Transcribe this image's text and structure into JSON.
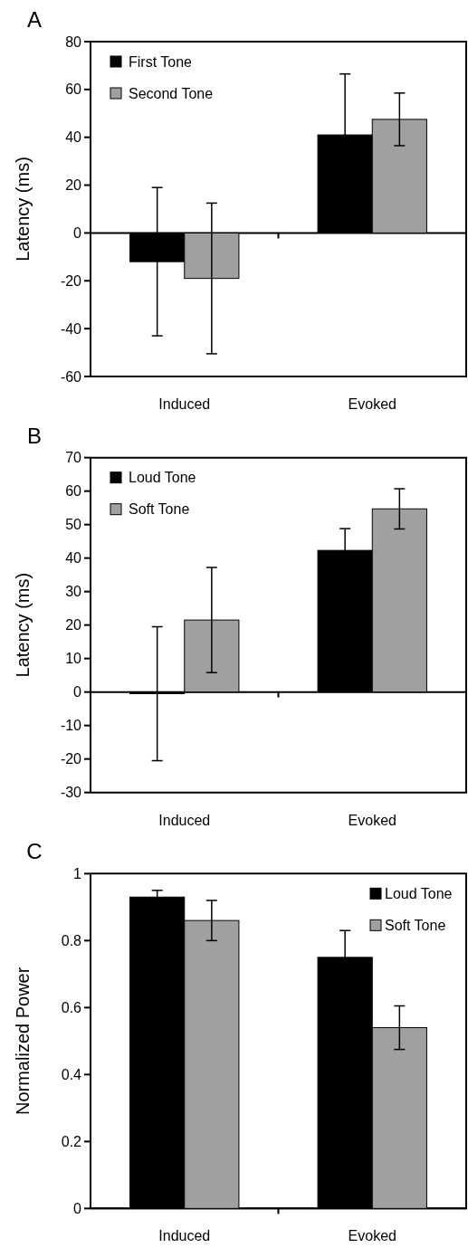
{
  "chart_data": [
    {
      "type": "bar",
      "title": "A",
      "ylabel": "Latency (ms)",
      "categories": [
        "Induced",
        "Evoked"
      ],
      "ylim": [
        -60,
        80
      ],
      "yticks": [
        -60,
        -40,
        -20,
        0,
        20,
        40,
        60,
        80
      ],
      "legend": "top left",
      "ref_lines": [
        {
          "axis": "y",
          "value": 0
        }
      ],
      "series": [
        {
          "name": "First Tone",
          "color": "#000000",
          "values": [
            -12,
            41
          ],
          "errors": [
            31,
            25.5
          ]
        },
        {
          "name": "Second Tone",
          "color": "#a0a0a0",
          "values": [
            -19,
            47.5
          ],
          "errors": [
            31.5,
            11
          ]
        }
      ]
    },
    {
      "type": "bar",
      "title": "B",
      "ylabel": "Latency (ms)",
      "categories": [
        "Induced",
        "Evoked"
      ],
      "ylim": [
        -30,
        70
      ],
      "yticks": [
        -30,
        -20,
        -10,
        0,
        10,
        20,
        30,
        40,
        50,
        60,
        70
      ],
      "legend": "top left",
      "ref_lines": [
        {
          "axis": "y",
          "value": 0
        }
      ],
      "series": [
        {
          "name": "Loud Tone",
          "color": "#000000",
          "values": [
            -0.5,
            42.3
          ],
          "errors": [
            20,
            6.5
          ]
        },
        {
          "name": "Soft Tone",
          "color": "#a0a0a0",
          "values": [
            21.5,
            54.7
          ],
          "errors": [
            15.7,
            6
          ]
        }
      ]
    },
    {
      "type": "bar",
      "title": "C",
      "ylabel": "Normalized Power",
      "categories": [
        "Induced",
        "Evoked"
      ],
      "ylim": [
        0,
        1
      ],
      "yticks": [
        0,
        0.2,
        0.4,
        0.6,
        0.8,
        1
      ],
      "legend": "top right",
      "series": [
        {
          "name": "Loud Tone",
          "color": "#000000",
          "values": [
            0.93,
            0.75
          ],
          "errors": [
            0.02,
            0.08
          ]
        },
        {
          "name": "Soft Tone",
          "color": "#a0a0a0",
          "values": [
            0.86,
            0.54
          ],
          "errors": [
            0.06,
            0.065
          ]
        }
      ]
    }
  ]
}
